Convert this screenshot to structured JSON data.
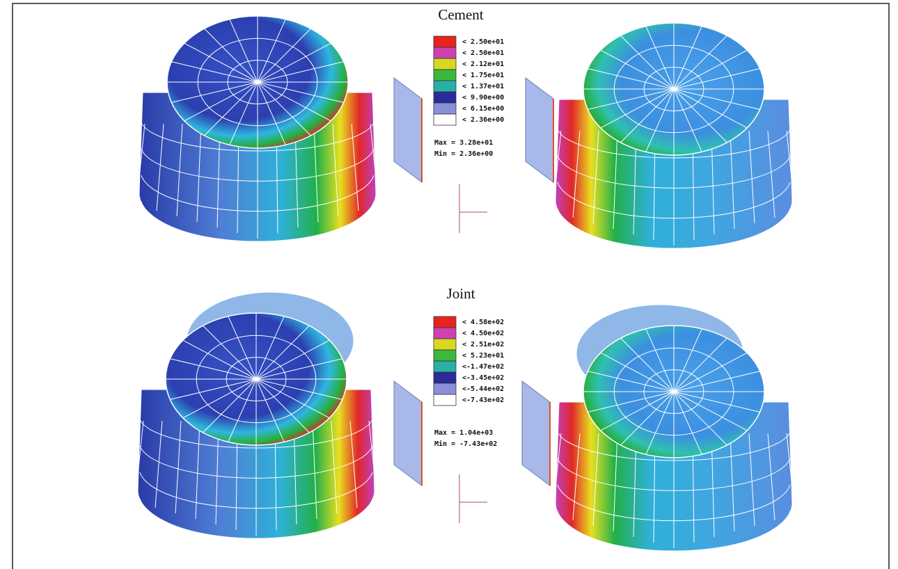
{
  "panels": [
    {
      "title": "Cement",
      "legend": [
        "< 2.50e+01",
        "< 2.50e+01",
        "< 2.12e+01",
        "< 1.75e+01",
        "< 1.37e+01",
        "< 9.90e+00",
        "< 6.15e+00",
        "< 2.36e+00"
      ],
      "max": "Max = 3.28e+01",
      "min": "Min = 2.36e+00"
    },
    {
      "title": "Joint",
      "legend": [
        "< 4.58e+02",
        "< 4.50e+02",
        "< 2.51e+02",
        "< 5.23e+01",
        "<-1.47e+02",
        "<-3.45e+02",
        "<-5.44e+02",
        "<-7.43e+02"
      ],
      "max": "Max = 1.04e+03",
      "min": "Min = -7.43e+02"
    }
  ]
}
